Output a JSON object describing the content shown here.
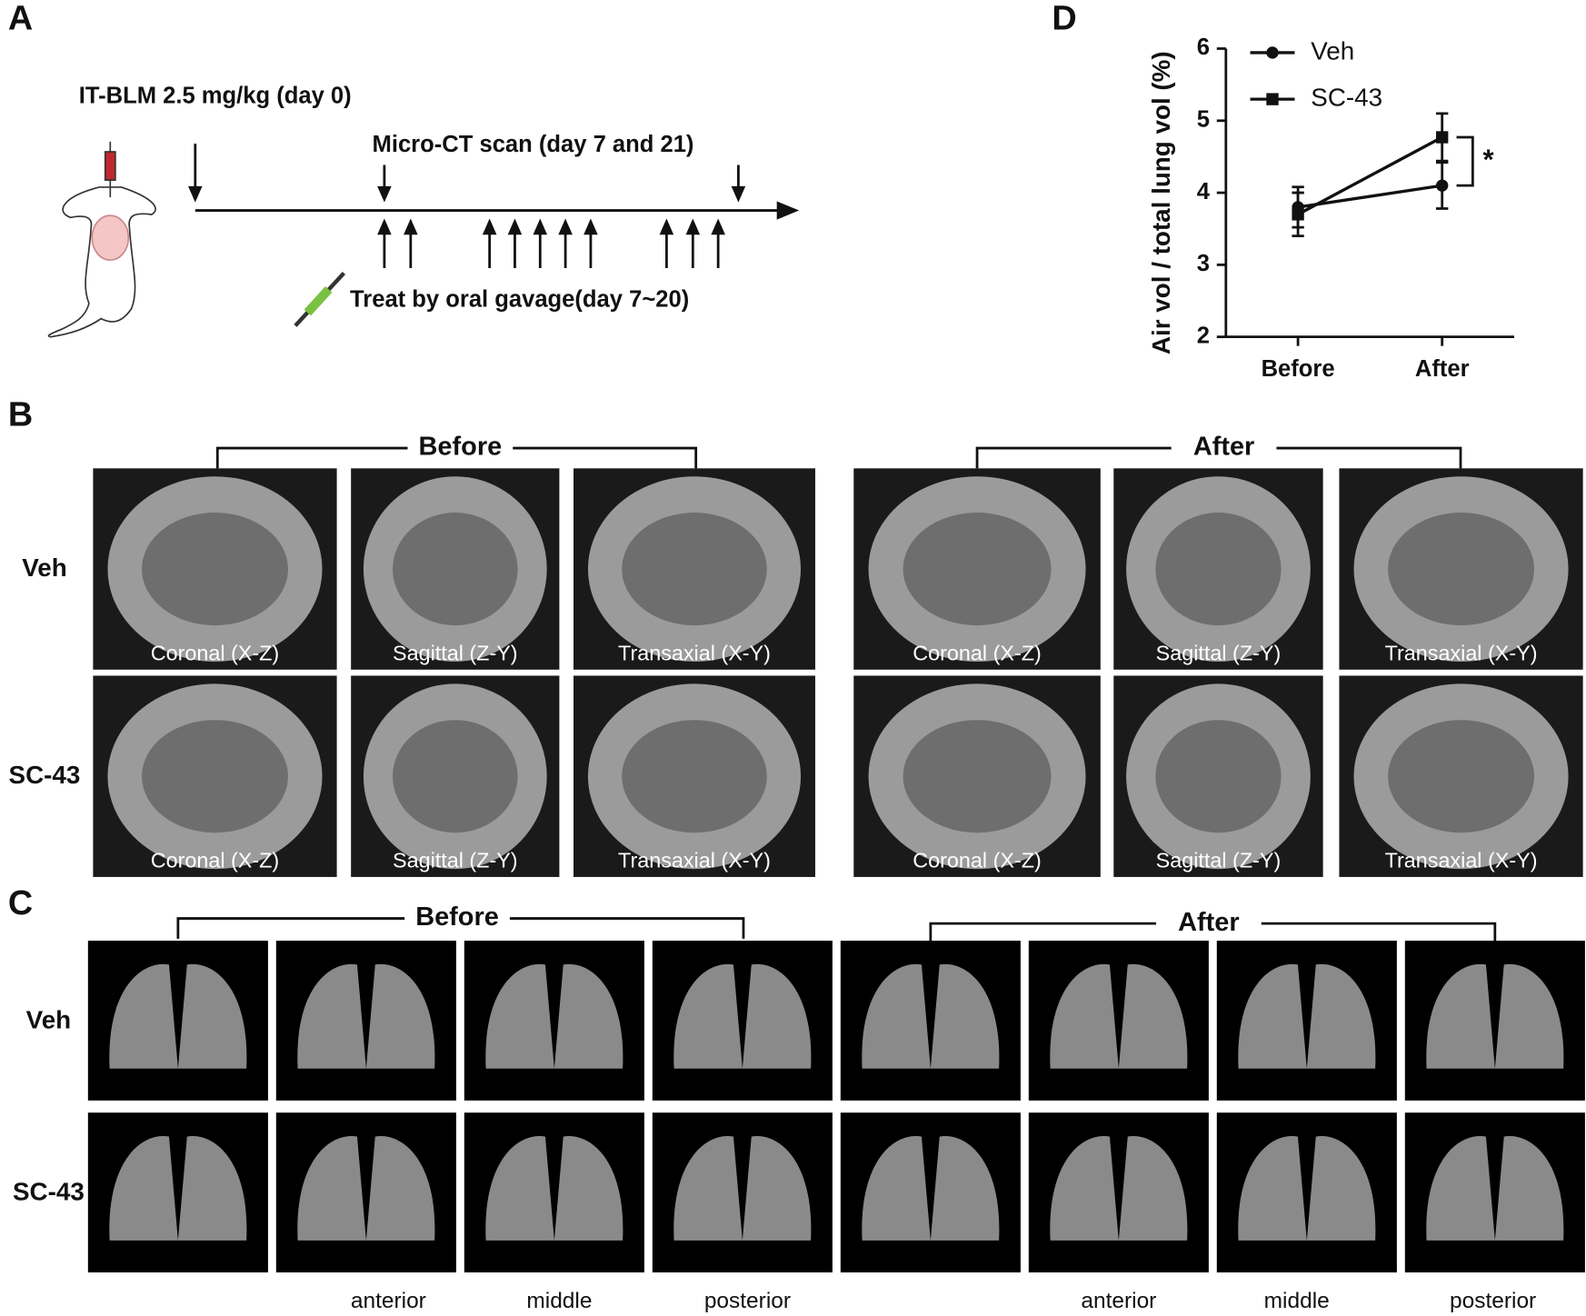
{
  "panel_a": {
    "label": "A",
    "injection": "IT-BLM 2.5 mg/kg (day 0)",
    "scan": "Micro-CT scan (day 7 and 21)",
    "treatment": "Treat by oral gavage(day 7~20)"
  },
  "panel_b": {
    "label": "B",
    "groups": [
      "Before",
      "After"
    ],
    "rows": [
      "Veh",
      "SC-43"
    ],
    "views": [
      "Coronal (X-Z)",
      "Sagittal (Z-Y)",
      "Transaxial (X-Y)"
    ]
  },
  "panel_c": {
    "label": "C",
    "groups": [
      "Before",
      "After"
    ],
    "rows": [
      "Veh",
      "SC-43"
    ],
    "sections": [
      "anterior",
      "middle",
      "posterior"
    ]
  },
  "chart_data": {
    "type": "line",
    "panel_label": "D",
    "y_label": "Air vol / total lung vol (%)",
    "categories": [
      "Before",
      "After"
    ],
    "series": [
      {
        "name": "Veh",
        "color": "#111111",
        "marker": "circle",
        "values": [
          3.8,
          4.1
        ],
        "errors": [
          0.28,
          0.32
        ]
      },
      {
        "name": "SC-43",
        "color": "#111111",
        "marker": "square",
        "values": [
          3.7,
          4.77
        ],
        "errors": [
          0.3,
          0.33
        ]
      }
    ],
    "ylim": [
      2,
      6
    ],
    "yticks": [
      2,
      3,
      4,
      5,
      6
    ],
    "annotation": "*"
  }
}
